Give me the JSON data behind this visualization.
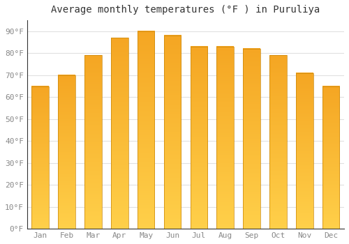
{
  "title": "Average monthly temperatures (°F ) in Puruliya",
  "months": [
    "Jan",
    "Feb",
    "Mar",
    "Apr",
    "May",
    "Jun",
    "Jul",
    "Aug",
    "Sep",
    "Oct",
    "Nov",
    "Dec"
  ],
  "values": [
    65,
    70,
    79,
    87,
    90,
    88,
    83,
    83,
    82,
    79,
    71,
    65
  ],
  "bar_color_top": "#F5A623",
  "bar_color_bottom": "#FFD04A",
  "ylim": [
    0,
    95
  ],
  "yticks": [
    0,
    10,
    20,
    30,
    40,
    50,
    60,
    70,
    80,
    90
  ],
  "ytick_labels": [
    "0°F",
    "10°F",
    "20°F",
    "30°F",
    "40°F",
    "50°F",
    "60°F",
    "70°F",
    "80°F",
    "90°F"
  ],
  "background_color": "#ffffff",
  "grid_color": "#e0e0e0",
  "title_fontsize": 10,
  "tick_fontsize": 8,
  "bar_edge_color": "#c8860a",
  "bar_edge_width": 0.5
}
